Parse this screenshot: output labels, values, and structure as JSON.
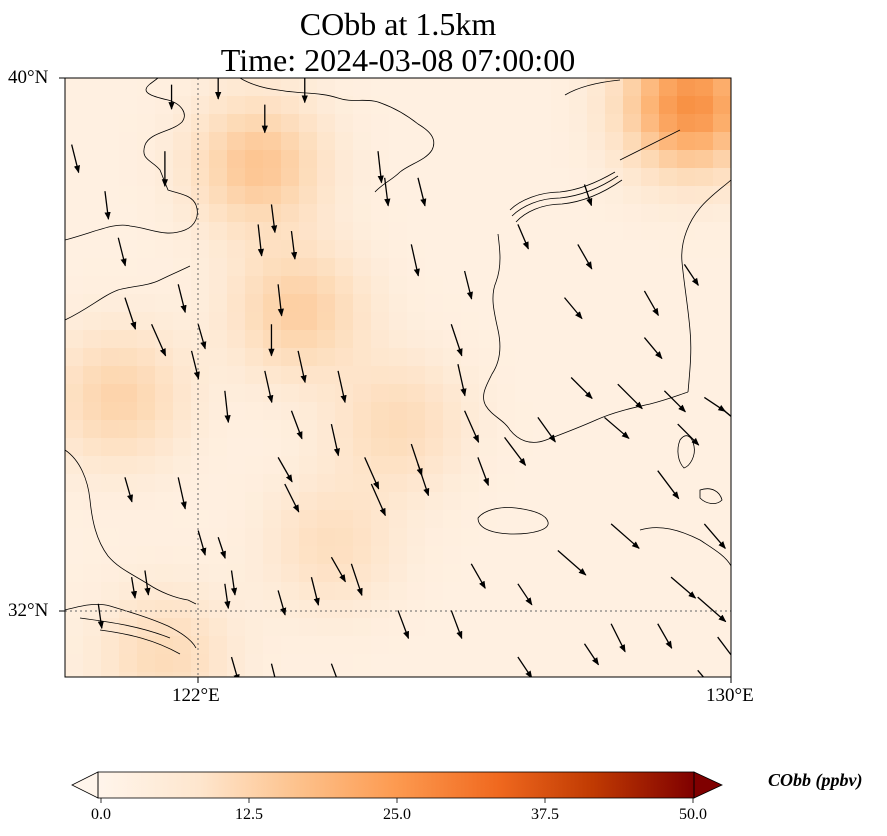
{
  "title": {
    "line1": "CObb at 1.5km",
    "line2": "Time: 2024-03-08 07:00:00"
  },
  "axes": {
    "lat_labels": [
      "40°N",
      "32°N"
    ],
    "lon_labels": [
      "122°E",
      "130°E"
    ]
  },
  "colorbar": {
    "label": "CObb (ppbv)",
    "ticks": [
      "0.0",
      "12.5",
      "25.0",
      "37.5",
      "50.0"
    ],
    "colors": [
      "#fff5eb",
      "#fdd9b4",
      "#fdb170",
      "#f78a3b",
      "#e05a10",
      "#b33003",
      "#7f0000"
    ]
  },
  "chart_data": {
    "type": "map",
    "variable": "CObb",
    "units": "ppbv",
    "level": "1.5km",
    "time": "2024-03-08 07:00:00",
    "lon_range": [
      120,
      130
    ],
    "lat_range": [
      31,
      40
    ],
    "gridlines": {
      "lon": [
        122
      ],
      "lat": [
        32
      ]
    },
    "colorbar_range": [
      0,
      50
    ],
    "colorbar_extend": "both",
    "colormap": "Oranges",
    "hotspots": [
      {
        "lon": 129.4,
        "lat": 39.6,
        "value": 22
      },
      {
        "lon": 122.9,
        "lat": 38.7,
        "value": 11
      },
      {
        "lon": 123.5,
        "lat": 36.5,
        "value": 9
      },
      {
        "lon": 120.8,
        "lat": 35.2,
        "value": 8
      },
      {
        "lon": 125.0,
        "lat": 34.8,
        "value": 6
      },
      {
        "lon": 124.0,
        "lat": 33.0,
        "value": 5
      },
      {
        "lon": 121.5,
        "lat": 31.3,
        "value": 6
      }
    ],
    "wind_vectors": [
      [
        120.1,
        39.0,
        0.1,
        -0.4
      ],
      [
        120.6,
        38.3,
        0.05,
        -0.4
      ],
      [
        120.8,
        37.6,
        0.1,
        -0.4
      ],
      [
        120.9,
        36.7,
        0.15,
        -0.45
      ],
      [
        121.3,
        36.3,
        0.2,
        -0.45
      ],
      [
        121.6,
        39.9,
        0.0,
        -0.35
      ],
      [
        121.5,
        38.9,
        0.0,
        -0.5
      ],
      [
        122.3,
        40.0,
        0.0,
        -0.3
      ],
      [
        123.0,
        39.6,
        0.0,
        -0.4
      ],
      [
        123.1,
        38.1,
        0.05,
        -0.4
      ],
      [
        122.9,
        37.8,
        0.05,
        -0.45
      ],
      [
        123.4,
        37.7,
        0.05,
        -0.4
      ],
      [
        123.2,
        36.9,
        0.05,
        -0.45
      ],
      [
        123.1,
        36.3,
        0.0,
        -0.45
      ],
      [
        121.7,
        36.9,
        0.1,
        -0.4
      ],
      [
        123.6,
        40.0,
        0.0,
        -0.35
      ],
      [
        124.7,
        38.9,
        0.05,
        -0.45
      ],
      [
        124.8,
        38.5,
        0.05,
        -0.4
      ],
      [
        125.3,
        38.5,
        0.1,
        -0.4
      ],
      [
        125.2,
        37.5,
        0.1,
        -0.45
      ],
      [
        124.1,
        35.6,
        0.1,
        -0.45
      ],
      [
        123.0,
        35.6,
        0.1,
        -0.45
      ],
      [
        123.5,
        35.9,
        0.1,
        -0.45
      ],
      [
        122.4,
        35.3,
        0.05,
        -0.45
      ],
      [
        123.4,
        35.0,
        0.15,
        -0.4
      ],
      [
        124.0,
        34.8,
        0.1,
        -0.45
      ],
      [
        125.9,
        35.7,
        0.1,
        -0.45
      ],
      [
        125.2,
        34.5,
        0.15,
        -0.45
      ],
      [
        125.3,
        34.2,
        0.15,
        -0.45
      ],
      [
        126.2,
        34.3,
        0.15,
        -0.4
      ],
      [
        125.8,
        36.3,
        0.15,
        -0.45
      ],
      [
        126.0,
        35.0,
        0.2,
        -0.45
      ],
      [
        126.0,
        37.1,
        0.1,
        -0.4
      ],
      [
        126.8,
        37.8,
        0.15,
        -0.35
      ],
      [
        127.8,
        38.4,
        0.1,
        -0.3
      ],
      [
        127.7,
        37.5,
        0.2,
        -0.35
      ],
      [
        127.5,
        36.7,
        0.25,
        -0.3
      ],
      [
        127.6,
        35.5,
        0.3,
        -0.3
      ],
      [
        127.1,
        34.9,
        0.25,
        -0.35
      ],
      [
        126.6,
        34.6,
        0.3,
        -0.4
      ],
      [
        128.7,
        36.8,
        0.2,
        -0.35
      ],
      [
        128.3,
        35.4,
        0.35,
        -0.35
      ],
      [
        128.1,
        34.9,
        0.35,
        -0.3
      ],
      [
        128.7,
        36.1,
        0.25,
        -0.3
      ],
      [
        129.3,
        37.2,
        0.2,
        -0.3
      ],
      [
        129.0,
        35.3,
        0.3,
        -0.3
      ],
      [
        129.2,
        34.8,
        0.3,
        -0.3
      ],
      [
        129.6,
        35.2,
        0.3,
        -0.2
      ],
      [
        129.9,
        35.0,
        0.3,
        -0.25
      ],
      [
        128.9,
        34.1,
        0.3,
        -0.4
      ],
      [
        129.6,
        33.3,
        0.3,
        -0.35
      ],
      [
        128.2,
        33.3,
        0.4,
        -0.35
      ],
      [
        127.4,
        32.9,
        0.4,
        -0.35
      ],
      [
        126.8,
        32.4,
        0.2,
        -0.3
      ],
      [
        126.1,
        32.7,
        0.2,
        -0.35
      ],
      [
        129.5,
        32.2,
        0.4,
        -0.35
      ],
      [
        129.1,
        32.5,
        0.35,
        -0.3
      ],
      [
        128.9,
        31.8,
        0.2,
        -0.35
      ],
      [
        128.2,
        31.8,
        0.2,
        -0.4
      ],
      [
        127.8,
        31.5,
        0.2,
        -0.3
      ],
      [
        126.8,
        31.3,
        0.2,
        -0.3
      ],
      [
        125.8,
        32.0,
        0.15,
        -0.4
      ],
      [
        125.0,
        32.0,
        0.15,
        -0.4
      ],
      [
        124.3,
        32.7,
        0.15,
        -0.45
      ],
      [
        123.7,
        32.5,
        0.1,
        -0.4
      ],
      [
        123.2,
        32.3,
        0.1,
        -0.35
      ],
      [
        123.3,
        33.9,
        0.2,
        -0.4
      ],
      [
        123.2,
        34.3,
        0.2,
        -0.35
      ],
      [
        124.6,
        33.9,
        0.2,
        -0.45
      ],
      [
        124.5,
        34.3,
        0.2,
        -0.45
      ],
      [
        124.0,
        32.8,
        0.2,
        -0.35
      ],
      [
        122.3,
        33.1,
        0.1,
        -0.3
      ],
      [
        122.5,
        32.6,
        0.05,
        -0.35
      ],
      [
        122.4,
        32.4,
        0.05,
        -0.35
      ],
      [
        121.2,
        32.6,
        0.05,
        -0.35
      ],
      [
        121.0,
        32.5,
        0.05,
        -0.3
      ],
      [
        120.5,
        32.1,
        0.05,
        -0.35
      ],
      [
        120.5,
        31.0,
        0.0,
        -0.3
      ],
      [
        122.5,
        31.3,
        0.1,
        -0.35
      ],
      [
        123.1,
        31.2,
        0.1,
        -0.4
      ],
      [
        124.0,
        31.2,
        0.15,
        -0.4
      ],
      [
        122.3,
        30.9,
        0.2,
        -0.4
      ],
      [
        129.5,
        31.1,
        0.3,
        -0.35
      ],
      [
        130.0,
        31.3,
        0.0,
        0.0
      ],
      [
        129.8,
        31.6,
        0.3,
        -0.4
      ],
      [
        122.0,
        33.2,
        0.1,
        -0.35
      ],
      [
        121.9,
        31.4,
        0.0,
        0.0
      ],
      [
        120.9,
        34.0,
        0.1,
        -0.35
      ],
      [
        121.7,
        34.0,
        0.1,
        -0.45
      ],
      [
        121.9,
        35.9,
        0.1,
        -0.4
      ],
      [
        122.0,
        36.3,
        0.1,
        -0.35
      ],
      [
        129.9,
        35.0,
        0.3,
        -0.25
      ]
    ]
  }
}
